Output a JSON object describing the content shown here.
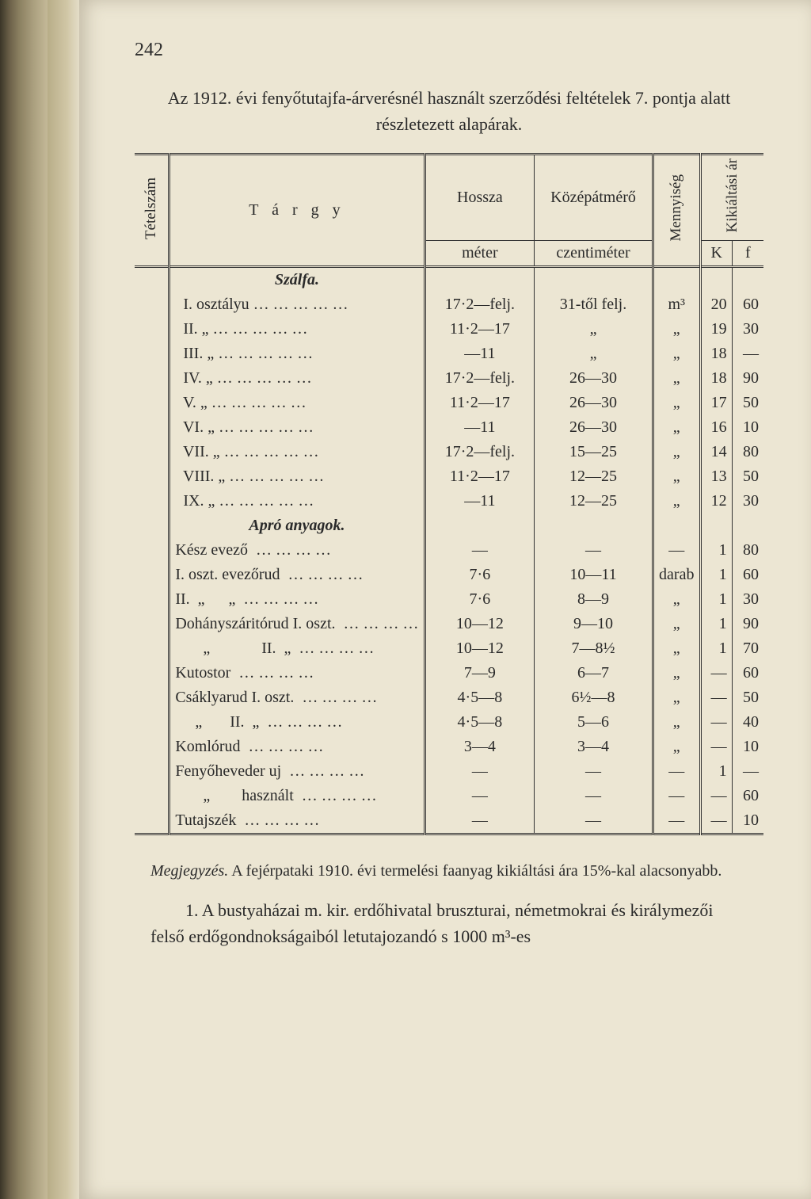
{
  "page_number": "242",
  "caption": "Az 1912. évi fenyőtutajfa-árverésnél használt szerződési feltételek 7. pontja alatt részletezett alapárak.",
  "headers": {
    "tetelszam": "Tételszám",
    "targy": "T á r g y",
    "hossza": "Hossza",
    "kozepatmero": "Középátmérő",
    "mennyiseg": "Mennyiség",
    "kikialtasi": "Kikiáltási ár",
    "meter": "méter",
    "czentimeter": "czentiméter",
    "K": "K",
    "f": "f"
  },
  "sections": {
    "szalfa": "Szálfa.",
    "apro": "Apró anyagok."
  },
  "rows_szalfa": [
    {
      "n": "I.",
      "t": "osztályu",
      "h": "17·2—felj.",
      "k": "31-től felj.",
      "m": "m³",
      "K": "20",
      "f": "60"
    },
    {
      "n": "II.",
      "t": "„",
      "h": "11·2—17",
      "k": "„",
      "m": "„",
      "K": "19",
      "f": "30"
    },
    {
      "n": "III.",
      "t": "„",
      "h": "—11",
      "k": "„",
      "m": "„",
      "K": "18",
      "f": "—"
    },
    {
      "n": "IV.",
      "t": "„",
      "h": "17·2—felj.",
      "k": "26—30",
      "m": "„",
      "K": "18",
      "f": "90"
    },
    {
      "n": "V.",
      "t": "„",
      "h": "11·2—17",
      "k": "26—30",
      "m": "„",
      "K": "17",
      "f": "50"
    },
    {
      "n": "VI.",
      "t": "„",
      "h": "—11",
      "k": "26—30",
      "m": "„",
      "K": "16",
      "f": "10"
    },
    {
      "n": "VII.",
      "t": "„",
      "h": "17·2—felj.",
      "k": "15—25",
      "m": "„",
      "K": "14",
      "f": "80"
    },
    {
      "n": "VIII.",
      "t": "„",
      "h": "11·2—17",
      "k": "12—25",
      "m": "„",
      "K": "13",
      "f": "50"
    },
    {
      "n": "IX.",
      "t": "„",
      "h": "—11",
      "k": "12—25",
      "m": "„",
      "K": "12",
      "f": "30"
    }
  ],
  "rows_apro": [
    {
      "t": "Kész evező",
      "h": "—",
      "k": "—",
      "m": "—",
      "K": "1",
      "f": "80"
    },
    {
      "t": "I. oszt. evezőrud",
      "h": "7·6",
      "k": "10—11",
      "m": "darab",
      "K": "1",
      "f": "60"
    },
    {
      "t": "II.  „      „",
      "h": "7·6",
      "k": "8—9",
      "m": "„",
      "K": "1",
      "f": "30"
    },
    {
      "t": "Dohányszáritórud I. oszt.",
      "h": "10—12",
      "k": "9—10",
      "m": "„",
      "K": "1",
      "f": "90"
    },
    {
      "t": "       „             II.  „",
      "h": "10—12",
      "k": "7—8½",
      "m": "„",
      "K": "1",
      "f": "70"
    },
    {
      "t": "Kutostor",
      "h": "7—9",
      "k": "6—7",
      "m": "„",
      "K": "—",
      "f": "60"
    },
    {
      "t": "Csáklyarud I. oszt.",
      "h": "4·5—8",
      "k": "6½—8",
      "m": "„",
      "K": "—",
      "f": "50"
    },
    {
      "t": "     „       II.  „",
      "h": "4·5—8",
      "k": "5—6",
      "m": "„",
      "K": "—",
      "f": "40"
    },
    {
      "t": "Komlórud",
      "h": "3—4",
      "k": "3—4",
      "m": "„",
      "K": "—",
      "f": "10"
    },
    {
      "t": "Fenyőheveder uj",
      "h": "—",
      "k": "—",
      "m": "—",
      "K": "1",
      "f": "—"
    },
    {
      "t": "       „        használt",
      "h": "—",
      "k": "—",
      "m": "—",
      "K": "—",
      "f": "60"
    },
    {
      "t": "Tutajszék",
      "h": "—",
      "k": "—",
      "m": "—",
      "K": "—",
      "f": "10"
    }
  ],
  "note_label": "Megjegyzés.",
  "note_text": " A fejérpataki 1910. évi termelési faanyag kikiáltási ára 15%-kal alacsonyabb.",
  "para2": "1. A bustyaházai m. kir. erdőhivatal bruszturai, németmokrai és királymezői felső erdőgondnokságaiból letutajozandó s 1000 m³-es"
}
